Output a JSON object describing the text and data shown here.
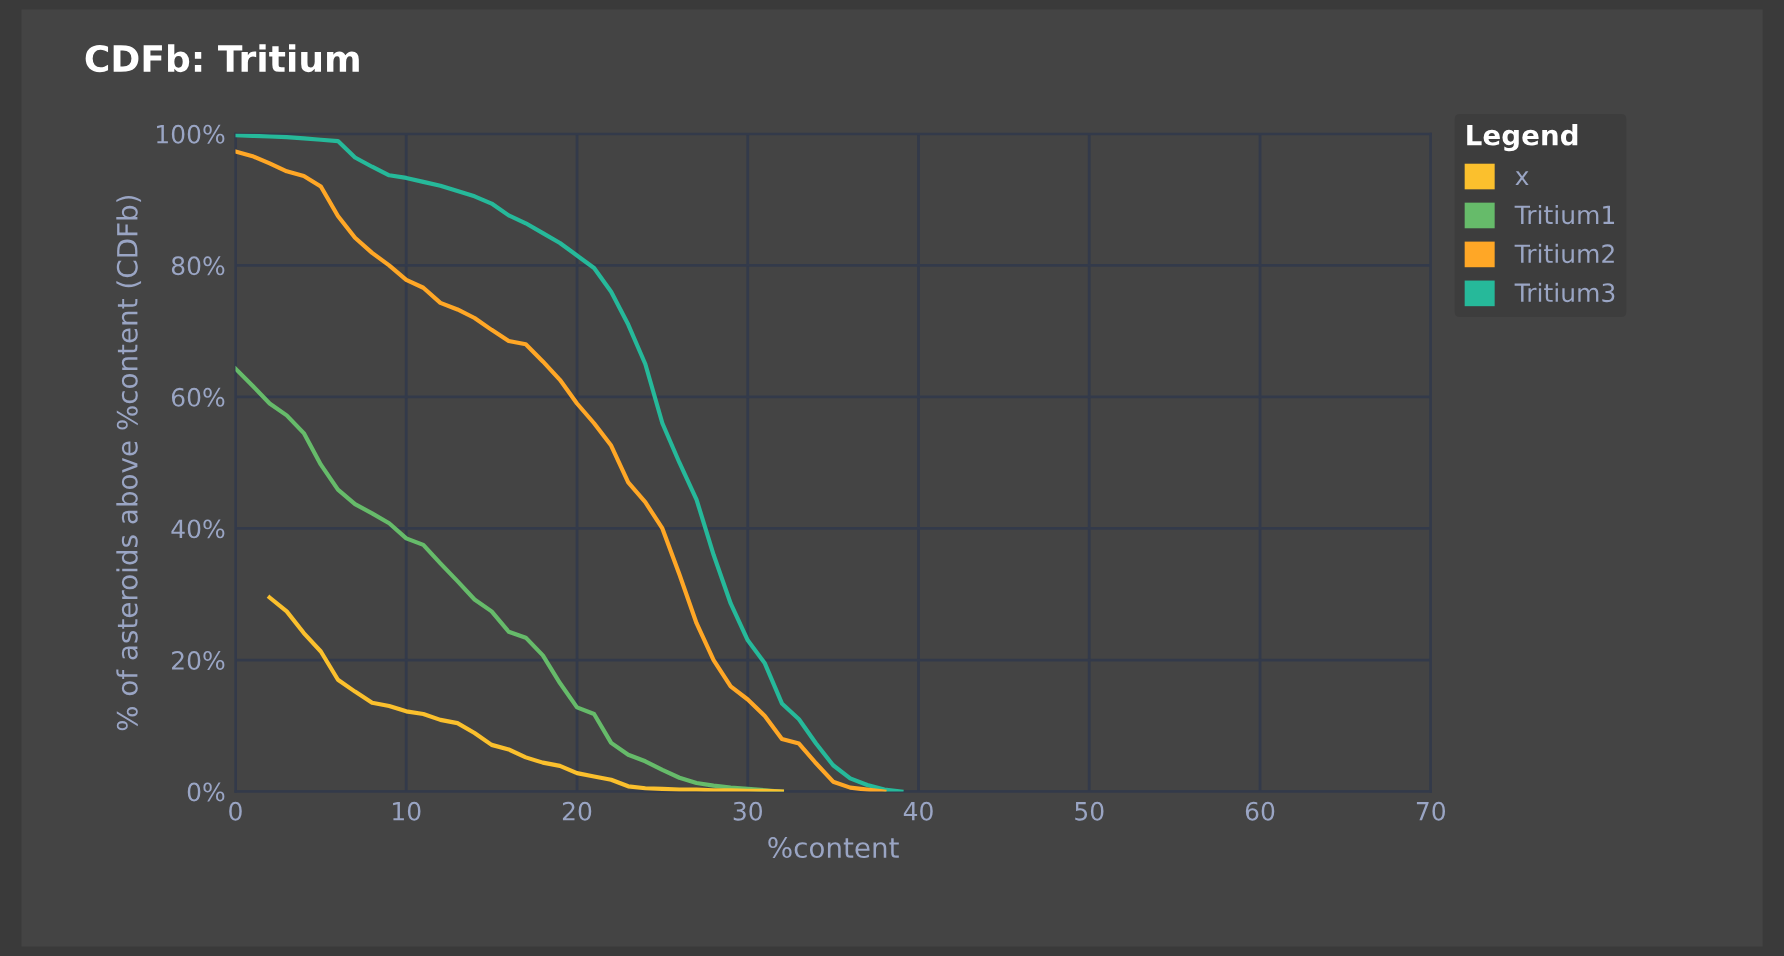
{
  "chart_data": {
    "type": "line",
    "title": "CDFb: Tritium",
    "xlabel": "%content",
    "ylabel": "% of asteroids above %content (CDFb)",
    "legend_title": "Legend",
    "legend": "right",
    "grid": true,
    "marker": "none",
    "line_style": "solid",
    "xlim": [
      0,
      70
    ],
    "xticks": [
      0,
      10,
      20,
      30,
      40,
      50,
      60,
      70
    ],
    "ylim": [
      0,
      100
    ],
    "yticks": [
      {
        "value": 0,
        "label": "0%"
      },
      {
        "value": 20,
        "label": "20%"
      },
      {
        "value": 40,
        "label": "40%"
      },
      {
        "value": 60,
        "label": "60%"
      },
      {
        "value": 80,
        "label": "80%"
      },
      {
        "value": 100,
        "label": "100%"
      }
    ],
    "series": [
      {
        "name": "x",
        "color": "#fbc02d",
        "x": [
          2,
          3,
          4,
          5,
          6,
          7,
          8,
          9,
          10,
          11,
          12,
          13,
          14,
          15,
          16,
          17,
          18,
          19,
          20,
          21,
          22,
          23,
          24,
          25,
          26,
          27,
          28,
          29,
          30,
          31,
          32
        ],
        "values": [
          29.5,
          27.4,
          24.1,
          21.3,
          17,
          15.2,
          13.5,
          13,
          12.2,
          11.8,
          10.9,
          10.4,
          8.9,
          7.1,
          6.4,
          5.2,
          4.4,
          3.9,
          2.8,
          2.3,
          1.8,
          0.8,
          0.5,
          0.4,
          0.3,
          0.3,
          0.2,
          0.2,
          0.1,
          0.1,
          0
        ]
      },
      {
        "name": "Tritium1",
        "color": "#66bb6a",
        "x": [
          0,
          1,
          2,
          3,
          4,
          5,
          6,
          7,
          8,
          9,
          10,
          11,
          12,
          13,
          14,
          15,
          16,
          17,
          18,
          19,
          20,
          21,
          22,
          23,
          24,
          25,
          26,
          27,
          28,
          29,
          30,
          31,
          32
        ],
        "values": [
          64.3,
          61.7,
          59,
          57.2,
          54.5,
          49.7,
          45.9,
          43.7,
          42.3,
          40.8,
          38.5,
          37.5,
          34.7,
          32,
          29.2,
          27.4,
          24.3,
          23.4,
          20.7,
          16.5,
          12.8,
          11.8,
          7.4,
          5.6,
          4.6,
          3.3,
          2.1,
          1.3,
          0.9,
          0.6,
          0.4,
          0.2,
          0
        ]
      },
      {
        "name": "Tritium2",
        "color": "#ffa726",
        "x": [
          0,
          1,
          2,
          3,
          4,
          5,
          6,
          7,
          8,
          9,
          10,
          11,
          12,
          13,
          14,
          15,
          16,
          17,
          18,
          19,
          20,
          21,
          22,
          23,
          24,
          25,
          26,
          27,
          28,
          29,
          30,
          31,
          32,
          33,
          34,
          35,
          36,
          37,
          38
        ],
        "values": [
          97.3,
          96.6,
          95.5,
          94.3,
          93.6,
          92,
          87.5,
          84.2,
          81.9,
          80,
          77.8,
          76.6,
          74.3,
          73.3,
          72,
          70.2,
          68.5,
          68,
          65.4,
          62.6,
          59,
          56,
          52.6,
          47,
          44,
          40,
          33,
          25.6,
          20,
          16,
          14,
          11.5,
          8,
          7.3,
          4.3,
          1.5,
          0.6,
          0.3,
          0
        ]
      },
      {
        "name": "Tritium3",
        "color": "#26b99a",
        "x": [
          0,
          1,
          2,
          3,
          4,
          5,
          6,
          7,
          8,
          9,
          10,
          11,
          12,
          13,
          14,
          15,
          16,
          17,
          18,
          19,
          20,
          21,
          22,
          23,
          24,
          25,
          26,
          27,
          28,
          29,
          30,
          31,
          32,
          33,
          34,
          35,
          36,
          37,
          38,
          39
        ],
        "values": [
          99.8,
          99.7,
          99.6,
          99.5,
          99.3,
          99.1,
          98.9,
          96.4,
          95,
          93.7,
          93.3,
          92.7,
          92.1,
          91.3,
          90.5,
          89.4,
          87.6,
          86.4,
          84.9,
          83.4,
          81.5,
          79.6,
          76,
          71,
          65,
          56,
          50,
          44.4,
          36,
          28.6,
          23,
          19.5,
          13.4,
          11,
          7.3,
          4,
          2,
          1,
          0.3,
          0
        ]
      }
    ]
  }
}
